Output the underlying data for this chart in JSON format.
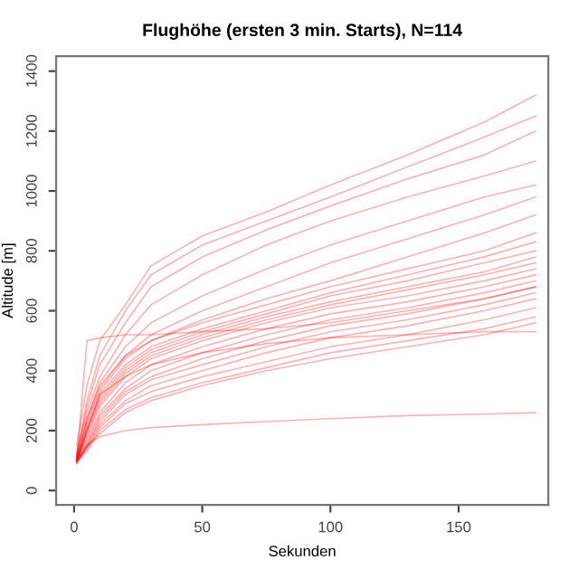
{
  "chart_data": {
    "type": "line",
    "title": "Flughöhe (ersten 3 min. Starts), N=114",
    "xlabel": "Sekunden",
    "ylabel": "Altitude [m]",
    "x": [
      1,
      5,
      10,
      20,
      30,
      50,
      75,
      100,
      130,
      160,
      180
    ],
    "xlim": [
      -7,
      185
    ],
    "xticks": [
      0,
      50,
      100,
      150
    ],
    "ylim": [
      -48,
      1450
    ],
    "yticks": [
      0,
      200,
      400,
      600,
      800,
      1000,
      1200,
      1400
    ],
    "grid": false,
    "marker": "none",
    "line_style": "solid",
    "series": [
      {
        "color": "#ff0000",
        "values": [
          150,
          350,
          500,
          620,
          750,
          850,
          930,
          1020,
          1120,
          1230,
          1320
        ]
      },
      {
        "color": "#ff0000",
        "values": [
          120,
          300,
          450,
          600,
          720,
          820,
          900,
          980,
          1080,
          1180,
          1250
        ]
      },
      {
        "color": "#ff0000",
        "values": [
          110,
          280,
          420,
          560,
          680,
          780,
          870,
          950,
          1040,
          1120,
          1200
        ]
      },
      {
        "color": "#ff0000",
        "values": [
          130,
          260,
          380,
          520,
          620,
          720,
          820,
          900,
          980,
          1050,
          1100
        ]
      },
      {
        "color": "#ff0000",
        "values": [
          100,
          240,
          360,
          480,
          560,
          650,
          740,
          820,
          900,
          980,
          1020
        ]
      },
      {
        "color": "#ff0000",
        "values": [
          110,
          230,
          340,
          450,
          520,
          600,
          680,
          760,
          840,
          920,
          980
        ]
      },
      {
        "color": "#ff0000",
        "values": [
          100,
          220,
          330,
          440,
          500,
          570,
          640,
          700,
          780,
          860,
          920
        ]
      },
      {
        "color": "#ff0000",
        "values": [
          120,
          240,
          350,
          450,
          500,
          560,
          620,
          680,
          740,
          800,
          860
        ]
      },
      {
        "color": "#ff0000",
        "values": [
          100,
          200,
          320,
          420,
          480,
          540,
          600,
          660,
          720,
          780,
          830
        ]
      },
      {
        "color": "#ff0000",
        "values": [
          110,
          210,
          310,
          410,
          470,
          530,
          590,
          650,
          700,
          760,
          800
        ]
      },
      {
        "color": "#ff0000",
        "values": [
          95,
          200,
          300,
          400,
          460,
          520,
          580,
          630,
          680,
          730,
          780
        ]
      },
      {
        "color": "#ff0000",
        "values": [
          105,
          190,
          290,
          390,
          450,
          510,
          570,
          620,
          670,
          720,
          760
        ]
      },
      {
        "color": "#ff0000",
        "values": [
          100,
          180,
          280,
          380,
          440,
          500,
          560,
          610,
          650,
          700,
          740
        ]
      },
      {
        "color": "#ff0000",
        "values": [
          110,
          170,
          260,
          360,
          420,
          480,
          540,
          590,
          630,
          680,
          720
        ]
      },
      {
        "color": "#ff0000",
        "values": [
          100,
          160,
          250,
          340,
          400,
          460,
          520,
          570,
          610,
          660,
          700
        ]
      },
      {
        "color": "#ff0000",
        "values": [
          95,
          150,
          240,
          330,
          380,
          440,
          500,
          550,
          590,
          640,
          680
        ]
      },
      {
        "color": "#ff0000",
        "values": [
          100,
          150,
          230,
          320,
          370,
          420,
          480,
          530,
          570,
          620,
          660
        ]
      },
      {
        "color": "#ff0000",
        "values": [
          90,
          140,
          220,
          300,
          350,
          400,
          460,
          510,
          550,
          600,
          640
        ]
      },
      {
        "color": "#ff0000",
        "values": [
          100,
          140,
          210,
          290,
          330,
          380,
          430,
          480,
          520,
          570,
          610
        ]
      },
      {
        "color": "#ff0000",
        "values": [
          100,
          130,
          200,
          270,
          310,
          360,
          410,
          460,
          500,
          540,
          580
        ]
      },
      {
        "color": "#ff0000",
        "values": [
          90,
          150,
          190,
          260,
          300,
          350,
          400,
          440,
          480,
          520,
          560
        ]
      },
      {
        "color": "#ff0000",
        "values": [
          100,
          200,
          320,
          380,
          420,
          460,
          490,
          510,
          520,
          530,
          530
        ]
      },
      {
        "color": "#ff0000",
        "values": [
          100,
          500,
          510,
          520,
          520,
          530,
          540,
          560,
          600,
          640,
          680
        ]
      },
      {
        "color": "#ff0000",
        "values": [
          100,
          150,
          180,
          200,
          210,
          220,
          230,
          240,
          250,
          255,
          260
        ]
      }
    ]
  }
}
